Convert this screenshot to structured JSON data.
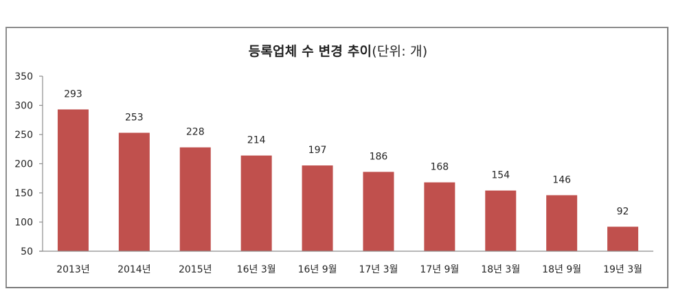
{
  "chart_data": {
    "type": "bar",
    "title": "등록업체 수 변경 추이",
    "title_unit": "(단위: 개)",
    "xlabel": "",
    "ylabel": "",
    "categories": [
      "2013년",
      "2014년",
      "2015년",
      "16년 3월",
      "16년 9월",
      "17년 3월",
      "17년 9월",
      "18년 3월",
      "18년 9월",
      "19년 3월"
    ],
    "values": [
      293,
      253,
      228,
      214,
      197,
      186,
      168,
      154,
      146,
      92
    ],
    "ylim": [
      50,
      350
    ],
    "yticks": [
      50,
      100,
      150,
      200,
      250,
      300,
      350
    ],
    "grid": false,
    "legend": null,
    "data_labels": true,
    "bar_color": "#c0504d"
  }
}
